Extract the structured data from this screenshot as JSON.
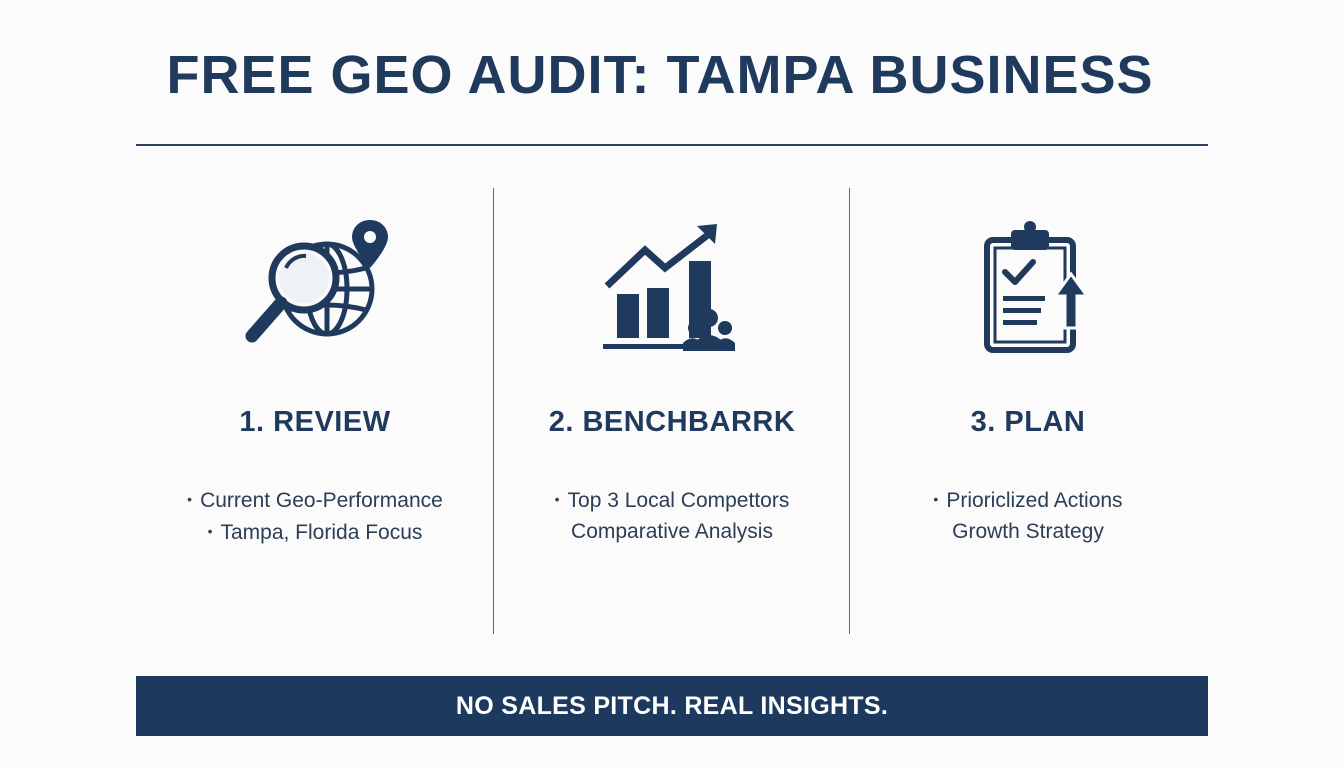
{
  "title": "FREE GEO AUDIT: TAMPA BUSINESS",
  "steps": [
    {
      "title": "1. REVIEW",
      "icon": "magnifier-globe-pin-icon",
      "lines": [
        {
          "bullet": true,
          "text": "Current Geo-Performance"
        },
        {
          "bullet": true,
          "text": "Tampa, Florida Focus"
        }
      ]
    },
    {
      "title": "2. BENCHBARRK",
      "icon": "bar-chart-arrow-people-icon",
      "lines": [
        {
          "bullet": true,
          "text": "Top 3 Local Compettors"
        },
        {
          "bullet": false,
          "text": "Comparative Analysis"
        }
      ]
    },
    {
      "title": "3. PLAN",
      "icon": "clipboard-check-arrow-icon",
      "lines": [
        {
          "bullet": true,
          "text": "Prioriclized Actions"
        },
        {
          "bullet": false,
          "text": "Growth Strategy"
        }
      ]
    }
  ],
  "banner": "NO SALES PITCH. REAL INSIGHTS.",
  "colors": {
    "primary": "#1f3a5c",
    "banner_bg": "#1d3a5e",
    "background": "#fbfbfb"
  }
}
